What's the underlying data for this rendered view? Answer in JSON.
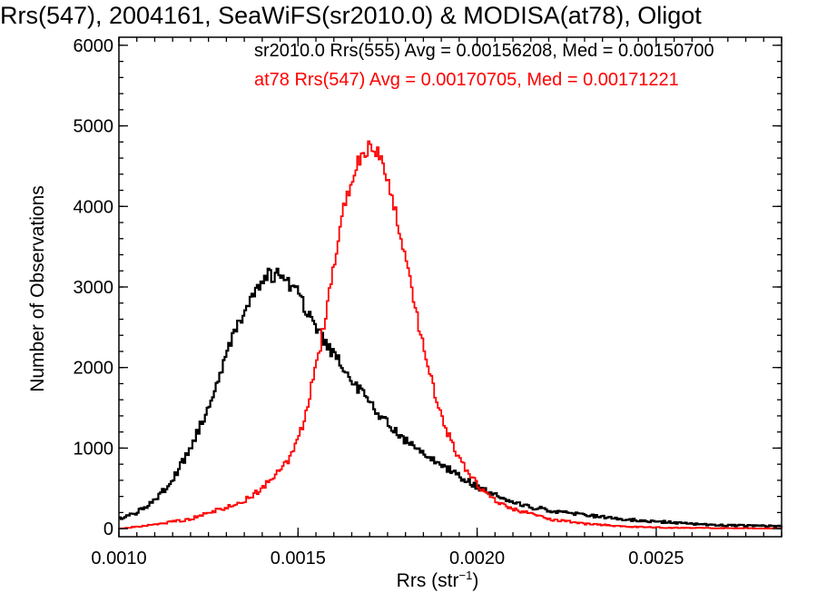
{
  "chart_data": {
    "type": "line",
    "title": "Rrs(547), 2004161, SeaWiFS(sr2010.0) & MODISA(at78), Oligot",
    "xlabel_main": "Rrs (str",
    "xlabel_sup": "−1",
    "xlabel_close": ")",
    "ylabel": "Number of Observations",
    "xlim": [
      0.001,
      0.00285
    ],
    "ylim": [
      -100,
      6100
    ],
    "xticks": [
      0.001,
      0.0015,
      0.002,
      0.0025
    ],
    "xtick_labels": [
      "0.0010",
      "0.0015",
      "0.0020",
      "0.0025"
    ],
    "yticks": [
      0,
      1000,
      2000,
      3000,
      4000,
      5000,
      6000
    ],
    "ytick_labels": [
      "0",
      "1000",
      "2000",
      "3000",
      "4000",
      "5000",
      "6000"
    ],
    "colors": {
      "black_series": "#000000",
      "red_series": "#ff0000"
    },
    "series": [
      {
        "name": "sr2010.0 Rrs(555) Avg = 0.00156208, Med = 0.00150700",
        "color": "#000000",
        "x": [
          0.001,
          0.00105,
          0.0011,
          0.00115,
          0.0012,
          0.00125,
          0.00128,
          0.0013,
          0.00133,
          0.00135,
          0.00138,
          0.0014,
          0.00142,
          0.00144,
          0.00146,
          0.00148,
          0.0015,
          0.00152,
          0.00154,
          0.00156,
          0.00158,
          0.0016,
          0.00163,
          0.00166,
          0.0017,
          0.00175,
          0.0018,
          0.00185,
          0.0019,
          0.00195,
          0.002,
          0.00205,
          0.0021,
          0.00215,
          0.0022,
          0.0023,
          0.0024,
          0.0025,
          0.0026,
          0.0027,
          0.00285
        ],
        "values": [
          120,
          200,
          350,
          600,
          1000,
          1500,
          1900,
          2200,
          2500,
          2700,
          2900,
          3050,
          3150,
          3150,
          3100,
          3000,
          2950,
          2750,
          2600,
          2450,
          2300,
          2150,
          2000,
          1800,
          1550,
          1300,
          1100,
          950,
          800,
          650,
          520,
          420,
          320,
          270,
          230,
          170,
          120,
          90,
          60,
          40,
          30
        ]
      },
      {
        "name": "at78 Rrs(547) Avg = 0.00170705, Med = 0.00171221",
        "color": "#ff0000",
        "x": [
          0.001,
          0.0011,
          0.0012,
          0.00125,
          0.0013,
          0.00135,
          0.0014,
          0.00145,
          0.00148,
          0.0015,
          0.00152,
          0.00154,
          0.00156,
          0.00158,
          0.0016,
          0.00162,
          0.00164,
          0.00166,
          0.00168,
          0.0017,
          0.00171,
          0.00172,
          0.00174,
          0.00176,
          0.00178,
          0.0018,
          0.00182,
          0.00184,
          0.00186,
          0.00188,
          0.0019,
          0.00193,
          0.00196,
          0.002,
          0.00205,
          0.0021,
          0.00215,
          0.0022,
          0.0023,
          0.0024,
          0.0025,
          0.0026,
          0.00285
        ],
        "values": [
          0,
          50,
          120,
          200,
          260,
          350,
          500,
          720,
          900,
          1100,
          1400,
          1800,
          2200,
          2750,
          3300,
          3800,
          4200,
          4500,
          4650,
          4750,
          4800,
          4700,
          4500,
          4200,
          3800,
          3350,
          2900,
          2450,
          2050,
          1700,
          1400,
          1050,
          800,
          550,
          350,
          250,
          180,
          120,
          60,
          30,
          15,
          8,
          3
        ]
      }
    ]
  }
}
